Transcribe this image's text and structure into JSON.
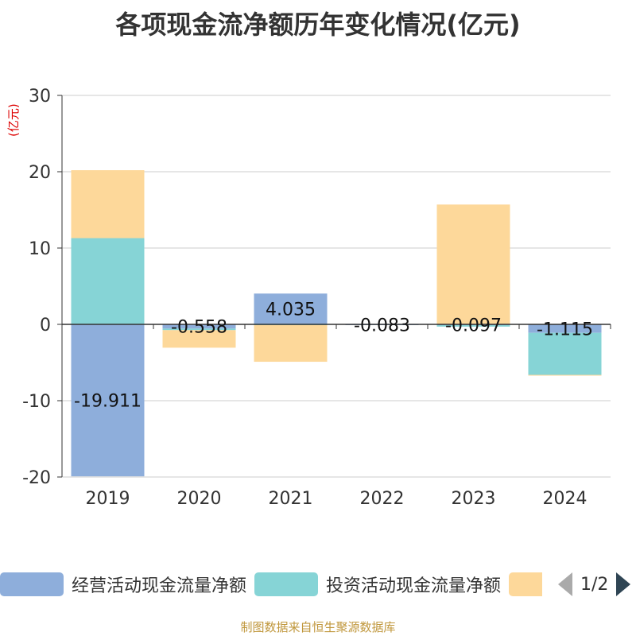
{
  "chart_data": {
    "type": "bar",
    "stacked": true,
    "title": "各项现金流净额历年变化情况(亿元)",
    "ylabel": "(亿元)",
    "xlabel": "",
    "categories": [
      "2019",
      "2020",
      "2021",
      "2022",
      "2023",
      "2024"
    ],
    "ylim": [
      -20,
      30
    ],
    "yticks": [
      30,
      20,
      10,
      0,
      -10,
      -20
    ],
    "grid": true,
    "series": [
      {
        "name": "经营活动现金流量净额",
        "color": "#8eaedb",
        "values": [
          -19.911,
          -0.558,
          4.035,
          -0.083,
          -0.097,
          -1.115
        ],
        "labels": [
          "-19.911",
          "-0.558",
          "4.035",
          "-0.083",
          "-0.097",
          "-1.115"
        ]
      },
      {
        "name": "投资活动现金流量净额",
        "color": "#86d4d6",
        "values": [
          11.3,
          -0.2,
          -0.1,
          0.0,
          -0.2,
          -5.5
        ]
      },
      {
        "name": "",
        "color": "#fdd89a",
        "values": [
          8.9,
          -2.3,
          -4.8,
          0.0,
          15.7,
          -0.1
        ]
      }
    ],
    "legend_position": "bottom",
    "pager": "1/2"
  },
  "source": "制图数据来自恒生聚源数据库"
}
